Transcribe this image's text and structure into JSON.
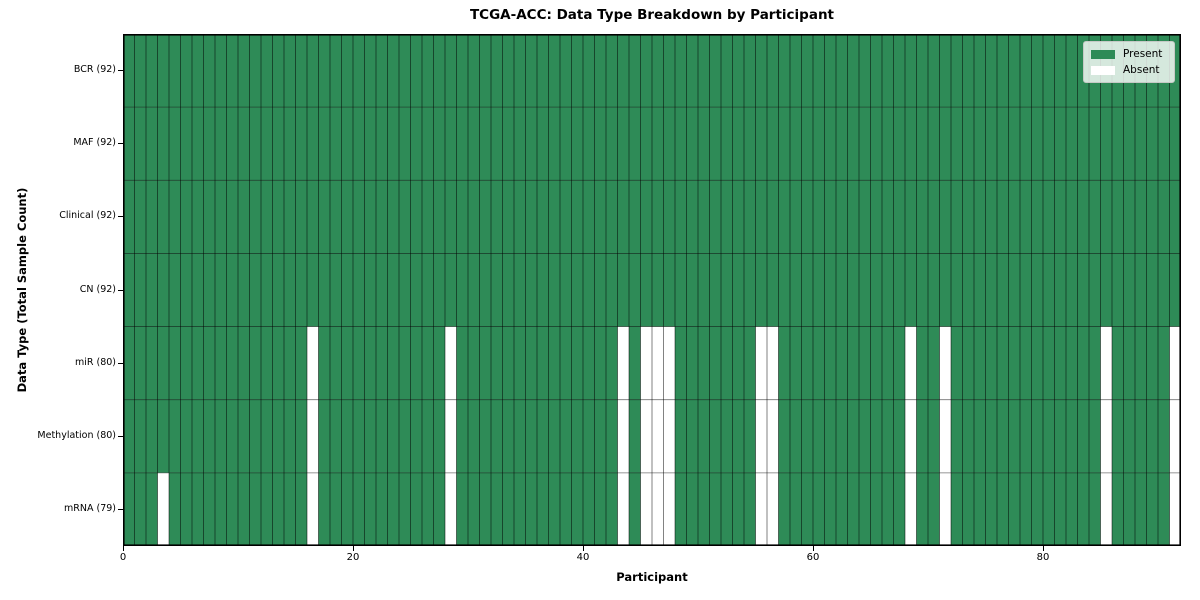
{
  "chart_data": {
    "type": "heatmap",
    "title": "TCGA-ACC: Data Type Breakdown by Participant",
    "xlabel": "Participant",
    "ylabel": "Data Type (Total Sample Count)",
    "x_ticks": [
      0,
      20,
      40,
      60,
      80
    ],
    "x_range": [
      0,
      92
    ],
    "n_participants": 92,
    "grid": true,
    "legend_position": "upper right",
    "rows": [
      {
        "label": "BCR (92)",
        "data_type": "BCR",
        "present_count": 92,
        "absent_participants": []
      },
      {
        "label": "MAF (92)",
        "data_type": "MAF",
        "present_count": 92,
        "absent_participants": []
      },
      {
        "label": "Clinical (92)",
        "data_type": "Clinical",
        "present_count": 92,
        "absent_participants": []
      },
      {
        "label": "CN (92)",
        "data_type": "CN",
        "present_count": 92,
        "absent_participants": []
      },
      {
        "label": "miR (80)",
        "data_type": "miR",
        "present_count": 80,
        "absent_participants": [
          16,
          28,
          43,
          45,
          46,
          47,
          55,
          56,
          68,
          71,
          85,
          91
        ]
      },
      {
        "label": "Methylation (80)",
        "data_type": "Methylation",
        "present_count": 80,
        "absent_participants": [
          16,
          28,
          43,
          45,
          46,
          47,
          55,
          56,
          68,
          71,
          85,
          91
        ]
      },
      {
        "label": "mRNA (79)",
        "data_type": "mRNA",
        "present_count": 79,
        "absent_participants": [
          3,
          16,
          28,
          43,
          45,
          46,
          47,
          55,
          56,
          68,
          71,
          85,
          91
        ]
      }
    ],
    "legend": [
      {
        "label": "Present",
        "color": "#2e8b57"
      },
      {
        "label": "Absent",
        "color": "#ffffff"
      }
    ],
    "colors": {
      "present": "#2e8b57",
      "absent": "#ffffff",
      "gridline": "#000000",
      "spine": "#000000"
    }
  }
}
